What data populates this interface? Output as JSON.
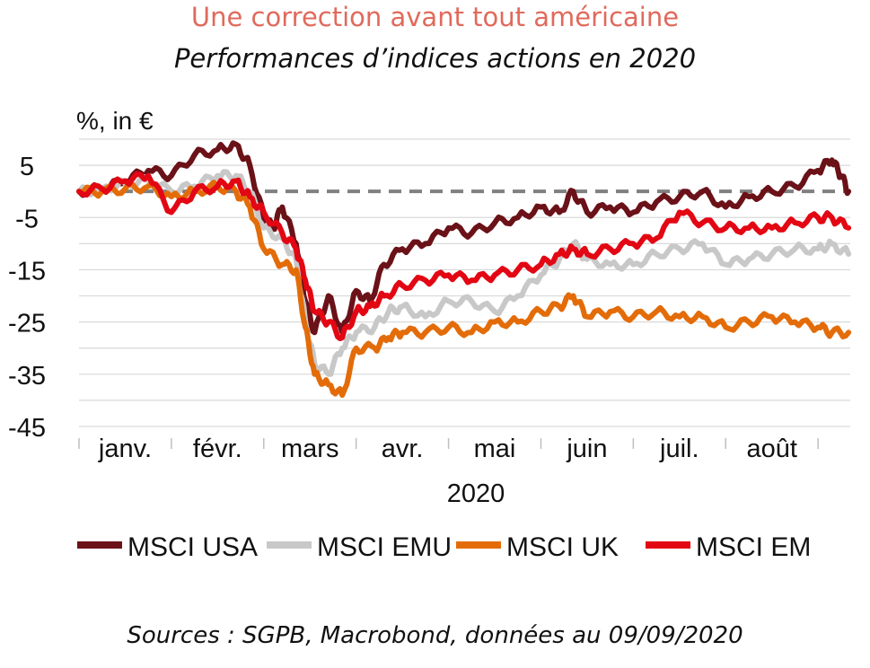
{
  "header": {
    "title": "Une correction avant tout américaine",
    "subtitle": "Performances d’indices actions en 2020"
  },
  "footer": {
    "source": "Sources : SGPB, Macrobond, données au 09/09/2020"
  },
  "chart_data": {
    "type": "line",
    "unit_label": "%, in €",
    "xlabel": "2020",
    "ylim": [
      -45,
      10
    ],
    "yticks": [
      5,
      -5,
      -15,
      -25,
      -35,
      -45
    ],
    "x_categories": [
      "janv.",
      "févr.",
      "mars",
      "avr.",
      "mai",
      "juin",
      "juil.",
      "août"
    ],
    "x_range": [
      0,
      8.3
    ],
    "reference_line": 0,
    "legend_position": "bottom",
    "grid": true,
    "series": [
      {
        "name": "MSCI USA",
        "color": "#6b1118",
        "points": [
          [
            0,
            0
          ],
          [
            0.25,
            0.5
          ],
          [
            0.5,
            2
          ],
          [
            0.75,
            4
          ],
          [
            1.0,
            3
          ],
          [
            1.25,
            7
          ],
          [
            1.5,
            8
          ],
          [
            1.7,
            9
          ],
          [
            1.85,
            5
          ],
          [
            2.0,
            -5
          ],
          [
            2.1,
            -7
          ],
          [
            2.2,
            -3
          ],
          [
            2.35,
            -10
          ],
          [
            2.45,
            -21
          ],
          [
            2.55,
            -27
          ],
          [
            2.7,
            -20
          ],
          [
            2.85,
            -27
          ],
          [
            3.0,
            -19
          ],
          [
            3.15,
            -21
          ],
          [
            3.3,
            -14
          ],
          [
            3.5,
            -11
          ],
          [
            3.75,
            -10
          ],
          [
            4.0,
            -7
          ],
          [
            4.25,
            -8
          ],
          [
            4.5,
            -6
          ],
          [
            4.75,
            -5
          ],
          [
            5.0,
            -3
          ],
          [
            5.2,
            -4
          ],
          [
            5.35,
            0
          ],
          [
            5.5,
            -4
          ],
          [
            5.75,
            -3
          ],
          [
            6.0,
            -4
          ],
          [
            6.25,
            -2
          ],
          [
            6.5,
            -1
          ],
          [
            6.75,
            0
          ],
          [
            7.0,
            -3
          ],
          [
            7.25,
            -1
          ],
          [
            7.5,
            0
          ],
          [
            7.75,
            1
          ],
          [
            8.0,
            4
          ],
          [
            8.15,
            6
          ],
          [
            8.25,
            3
          ],
          [
            8.33,
            0
          ]
        ]
      },
      {
        "name": "MSCI EMU",
        "color": "#c8c8c8",
        "points": [
          [
            0,
            0
          ],
          [
            0.25,
            0.5
          ],
          [
            0.5,
            1.5
          ],
          [
            0.75,
            2
          ],
          [
            1.0,
            0
          ],
          [
            1.25,
            1
          ],
          [
            1.5,
            3
          ],
          [
            1.7,
            3
          ],
          [
            1.85,
            0
          ],
          [
            2.0,
            -7
          ],
          [
            2.2,
            -9
          ],
          [
            2.35,
            -13
          ],
          [
            2.45,
            -25
          ],
          [
            2.55,
            -33
          ],
          [
            2.7,
            -35
          ],
          [
            2.85,
            -30
          ],
          [
            3.0,
            -27
          ],
          [
            3.2,
            -26
          ],
          [
            3.35,
            -23
          ],
          [
            3.5,
            -22
          ],
          [
            3.75,
            -24
          ],
          [
            4.0,
            -21
          ],
          [
            4.25,
            -21
          ],
          [
            4.5,
            -23
          ],
          [
            4.75,
            -20
          ],
          [
            5.0,
            -16
          ],
          [
            5.2,
            -13
          ],
          [
            5.35,
            -10
          ],
          [
            5.5,
            -13
          ],
          [
            5.75,
            -14
          ],
          [
            6.0,
            -14
          ],
          [
            6.25,
            -12
          ],
          [
            6.5,
            -11
          ],
          [
            6.75,
            -10
          ],
          [
            7.0,
            -14
          ],
          [
            7.25,
            -13
          ],
          [
            7.5,
            -12
          ],
          [
            7.75,
            -11
          ],
          [
            8.0,
            -11
          ],
          [
            8.15,
            -10
          ],
          [
            8.33,
            -12
          ]
        ]
      },
      {
        "name": "MSCI UK",
        "color": "#e36c09",
        "points": [
          [
            0,
            0
          ],
          [
            0.25,
            0
          ],
          [
            0.5,
            0.5
          ],
          [
            0.75,
            1
          ],
          [
            1.0,
            -1
          ],
          [
            1.25,
            0
          ],
          [
            1.5,
            1
          ],
          [
            1.7,
            0
          ],
          [
            1.85,
            -3
          ],
          [
            2.0,
            -11
          ],
          [
            2.2,
            -14
          ],
          [
            2.35,
            -15
          ],
          [
            2.45,
            -26
          ],
          [
            2.55,
            -35
          ],
          [
            2.7,
            -37
          ],
          [
            2.85,
            -39
          ],
          [
            3.0,
            -30
          ],
          [
            3.2,
            -30
          ],
          [
            3.35,
            -28
          ],
          [
            3.5,
            -27
          ],
          [
            3.75,
            -27
          ],
          [
            4.0,
            -26
          ],
          [
            4.25,
            -27
          ],
          [
            4.5,
            -25
          ],
          [
            4.75,
            -25
          ],
          [
            5.0,
            -23
          ],
          [
            5.2,
            -22
          ],
          [
            5.35,
            -20
          ],
          [
            5.5,
            -24
          ],
          [
            5.75,
            -23
          ],
          [
            6.0,
            -24
          ],
          [
            6.25,
            -23
          ],
          [
            6.5,
            -24
          ],
          [
            6.75,
            -24
          ],
          [
            7.0,
            -26
          ],
          [
            7.25,
            -25
          ],
          [
            7.5,
            -24
          ],
          [
            7.75,
            -25
          ],
          [
            8.0,
            -26
          ],
          [
            8.15,
            -27
          ],
          [
            8.33,
            -27
          ]
        ]
      },
      {
        "name": "MSCI EM",
        "color": "#e30613",
        "points": [
          [
            0,
            0
          ],
          [
            0.25,
            0.5
          ],
          [
            0.5,
            2
          ],
          [
            0.75,
            3
          ],
          [
            1.0,
            -4
          ],
          [
            1.25,
            0
          ],
          [
            1.5,
            1
          ],
          [
            1.7,
            2
          ],
          [
            1.85,
            -1
          ],
          [
            2.0,
            -4
          ],
          [
            2.2,
            -8
          ],
          [
            2.35,
            -11
          ],
          [
            2.45,
            -17
          ],
          [
            2.55,
            -23
          ],
          [
            2.7,
            -25
          ],
          [
            2.85,
            -28
          ],
          [
            3.0,
            -23
          ],
          [
            3.15,
            -22
          ],
          [
            3.3,
            -20
          ],
          [
            3.5,
            -18
          ],
          [
            3.75,
            -17
          ],
          [
            4.0,
            -16
          ],
          [
            4.25,
            -17
          ],
          [
            4.5,
            -16
          ],
          [
            4.75,
            -15
          ],
          [
            5.0,
            -14
          ],
          [
            5.2,
            -12
          ],
          [
            5.35,
            -11
          ],
          [
            5.5,
            -12
          ],
          [
            5.75,
            -11
          ],
          [
            6.0,
            -10
          ],
          [
            6.25,
            -9
          ],
          [
            6.5,
            -4
          ],
          [
            6.75,
            -6
          ],
          [
            7.0,
            -7
          ],
          [
            7.25,
            -7
          ],
          [
            7.5,
            -7
          ],
          [
            7.75,
            -6
          ],
          [
            8.0,
            -5
          ],
          [
            8.15,
            -5
          ],
          [
            8.33,
            -7
          ]
        ]
      }
    ],
    "legend_entries": [
      "MSCI USA",
      "MSCI EMU",
      "MSCI UK",
      "MSCI EM"
    ]
  }
}
